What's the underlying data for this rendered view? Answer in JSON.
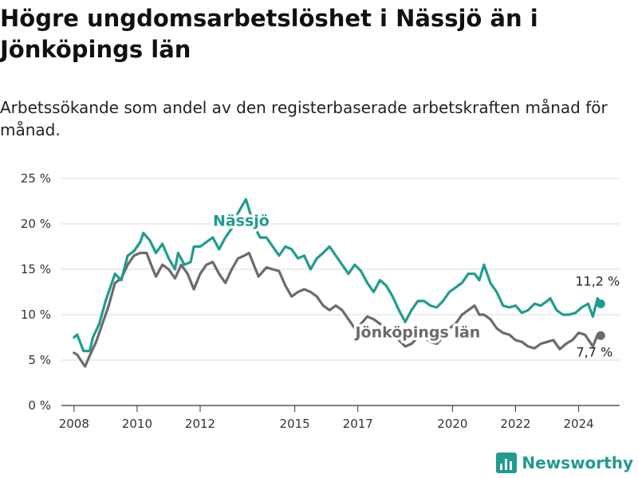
{
  "title": "Högre ungdomsarbetslöshet i Nässjö än i Jönköpings län",
  "subtitle": "Arbetssökande som andel av den registerbaserade arbetskraften månad för månad.",
  "brand": "Newsworthy",
  "colors": {
    "nassjo": "#1f9c8f",
    "lan": "#6b6b6b",
    "grid": "#d9d9d9",
    "axis": "#333333"
  },
  "chart_data": {
    "type": "line",
    "title": "Högre ungdomsarbetslöshet i Nässjö än i Jönköpings län",
    "xlabel": "",
    "ylabel": "",
    "ylim": [
      0,
      25
    ],
    "xlim": [
      2007.6,
      2025.3
    ],
    "y_ticks": [
      0,
      5,
      10,
      15,
      20,
      25
    ],
    "y_tick_labels": [
      "0 %",
      "5 %",
      "10 %",
      "15 %",
      "20 %",
      "25 %"
    ],
    "x_ticks": [
      2008,
      2010,
      2012,
      2015,
      2017,
      2020,
      2022,
      2024
    ],
    "x_tick_labels": [
      "2008",
      "2010",
      "2012",
      "2015",
      "2017",
      "2020",
      "2022",
      "2024"
    ],
    "series": [
      {
        "name": "Nässjö",
        "end_label": "11,2 %",
        "points": [
          [
            2008.0,
            7.5
          ],
          [
            2008.1,
            7.8
          ],
          [
            2008.3,
            6.0
          ],
          [
            2008.5,
            6.0
          ],
          [
            2008.6,
            7.5
          ],
          [
            2008.8,
            9.0
          ],
          [
            2009.0,
            11.5
          ],
          [
            2009.3,
            14.5
          ],
          [
            2009.5,
            13.8
          ],
          [
            2009.7,
            16.5
          ],
          [
            2009.9,
            17.0
          ],
          [
            2010.1,
            18.0
          ],
          [
            2010.2,
            19.0
          ],
          [
            2010.4,
            18.2
          ],
          [
            2010.6,
            16.8
          ],
          [
            2010.8,
            17.8
          ],
          [
            2011.0,
            16.2
          ],
          [
            2011.2,
            15.0
          ],
          [
            2011.3,
            16.8
          ],
          [
            2011.5,
            15.5
          ],
          [
            2011.7,
            15.8
          ],
          [
            2011.8,
            17.5
          ],
          [
            2012.0,
            17.5
          ],
          [
            2012.2,
            18.0
          ],
          [
            2012.4,
            18.5
          ],
          [
            2012.6,
            17.2
          ],
          [
            2012.8,
            18.5
          ],
          [
            2013.0,
            19.5
          ],
          [
            2013.2,
            21.2
          ],
          [
            2013.3,
            21.8
          ],
          [
            2013.45,
            22.7
          ],
          [
            2013.6,
            21.0
          ],
          [
            2013.75,
            19.5
          ],
          [
            2013.9,
            18.5
          ],
          [
            2014.1,
            18.5
          ],
          [
            2014.3,
            17.5
          ],
          [
            2014.5,
            16.5
          ],
          [
            2014.7,
            17.5
          ],
          [
            2014.9,
            17.2
          ],
          [
            2015.1,
            16.2
          ],
          [
            2015.3,
            16.5
          ],
          [
            2015.5,
            15.0
          ],
          [
            2015.7,
            16.2
          ],
          [
            2015.9,
            16.8
          ],
          [
            2016.1,
            17.5
          ],
          [
            2016.3,
            16.5
          ],
          [
            2016.5,
            15.5
          ],
          [
            2016.7,
            14.5
          ],
          [
            2016.9,
            15.5
          ],
          [
            2017.1,
            14.8
          ],
          [
            2017.3,
            13.5
          ],
          [
            2017.5,
            12.5
          ],
          [
            2017.7,
            13.8
          ],
          [
            2017.9,
            13.2
          ],
          [
            2018.1,
            12.0
          ],
          [
            2018.3,
            10.5
          ],
          [
            2018.5,
            9.2
          ],
          [
            2018.7,
            10.5
          ],
          [
            2018.9,
            11.5
          ],
          [
            2019.1,
            11.5
          ],
          [
            2019.3,
            11.0
          ],
          [
            2019.5,
            10.8
          ],
          [
            2019.7,
            11.5
          ],
          [
            2019.9,
            12.5
          ],
          [
            2020.1,
            13.0
          ],
          [
            2020.3,
            13.5
          ],
          [
            2020.5,
            14.5
          ],
          [
            2020.7,
            14.5
          ],
          [
            2020.85,
            13.8
          ],
          [
            2021.0,
            15.5
          ],
          [
            2021.2,
            13.5
          ],
          [
            2021.4,
            12.5
          ],
          [
            2021.6,
            11.0
          ],
          [
            2021.8,
            10.8
          ],
          [
            2022.0,
            11.0
          ],
          [
            2022.2,
            10.2
          ],
          [
            2022.4,
            10.5
          ],
          [
            2022.6,
            11.2
          ],
          [
            2022.8,
            11.0
          ],
          [
            2023.0,
            11.5
          ],
          [
            2023.1,
            11.8
          ],
          [
            2023.3,
            10.5
          ],
          [
            2023.5,
            10.0
          ],
          [
            2023.7,
            10.0
          ],
          [
            2023.9,
            10.2
          ],
          [
            2024.1,
            10.8
          ],
          [
            2024.3,
            11.2
          ],
          [
            2024.45,
            9.8
          ],
          [
            2024.6,
            11.8
          ],
          [
            2024.7,
            11.2
          ]
        ]
      },
      {
        "name": "Jönköpings län",
        "end_label": "7,7 %",
        "points": [
          [
            2008.0,
            5.8
          ],
          [
            2008.1,
            5.6
          ],
          [
            2008.25,
            4.8
          ],
          [
            2008.35,
            4.3
          ],
          [
            2008.5,
            5.5
          ],
          [
            2008.7,
            7.0
          ],
          [
            2008.9,
            9.0
          ],
          [
            2009.1,
            11.0
          ],
          [
            2009.3,
            13.5
          ],
          [
            2009.5,
            14.0
          ],
          [
            2009.7,
            15.5
          ],
          [
            2009.9,
            16.5
          ],
          [
            2010.1,
            16.8
          ],
          [
            2010.3,
            16.8
          ],
          [
            2010.5,
            15.0
          ],
          [
            2010.6,
            14.2
          ],
          [
            2010.8,
            15.5
          ],
          [
            2011.0,
            15.0
          ],
          [
            2011.2,
            14.0
          ],
          [
            2011.4,
            15.5
          ],
          [
            2011.6,
            14.5
          ],
          [
            2011.8,
            12.8
          ],
          [
            2012.0,
            14.5
          ],
          [
            2012.2,
            15.5
          ],
          [
            2012.4,
            15.8
          ],
          [
            2012.6,
            14.5
          ],
          [
            2012.8,
            13.5
          ],
          [
            2013.0,
            15.0
          ],
          [
            2013.2,
            16.2
          ],
          [
            2013.4,
            16.5
          ],
          [
            2013.55,
            16.8
          ],
          [
            2013.7,
            15.5
          ],
          [
            2013.85,
            14.2
          ],
          [
            2014.1,
            15.2
          ],
          [
            2014.3,
            15.0
          ],
          [
            2014.5,
            14.8
          ],
          [
            2014.7,
            13.2
          ],
          [
            2014.9,
            12.0
          ],
          [
            2015.1,
            12.5
          ],
          [
            2015.3,
            12.8
          ],
          [
            2015.5,
            12.5
          ],
          [
            2015.7,
            12.0
          ],
          [
            2015.9,
            11.0
          ],
          [
            2016.1,
            10.5
          ],
          [
            2016.3,
            11.0
          ],
          [
            2016.5,
            10.5
          ],
          [
            2016.7,
            9.5
          ],
          [
            2016.9,
            8.5
          ],
          [
            2017.1,
            9.0
          ],
          [
            2017.3,
            9.8
          ],
          [
            2017.5,
            9.5
          ],
          [
            2017.7,
            9.0
          ],
          [
            2017.9,
            8.5
          ],
          [
            2018.1,
            7.8
          ],
          [
            2018.3,
            7.2
          ],
          [
            2018.5,
            6.5
          ],
          [
            2018.7,
            6.8
          ],
          [
            2018.9,
            7.5
          ],
          [
            2019.1,
            7.5
          ],
          [
            2019.3,
            7.0
          ],
          [
            2019.5,
            6.8
          ],
          [
            2019.7,
            7.5
          ],
          [
            2019.9,
            8.5
          ],
          [
            2020.1,
            9.0
          ],
          [
            2020.3,
            10.0
          ],
          [
            2020.5,
            10.5
          ],
          [
            2020.7,
            11.0
          ],
          [
            2020.85,
            10.0
          ],
          [
            2021.0,
            10.0
          ],
          [
            2021.2,
            9.5
          ],
          [
            2021.4,
            8.5
          ],
          [
            2021.6,
            8.0
          ],
          [
            2021.8,
            7.8
          ],
          [
            2022.0,
            7.2
          ],
          [
            2022.2,
            7.0
          ],
          [
            2022.4,
            6.5
          ],
          [
            2022.6,
            6.3
          ],
          [
            2022.8,
            6.8
          ],
          [
            2023.0,
            7.0
          ],
          [
            2023.2,
            7.2
          ],
          [
            2023.4,
            6.2
          ],
          [
            2023.6,
            6.8
          ],
          [
            2023.8,
            7.2
          ],
          [
            2024.0,
            8.0
          ],
          [
            2024.2,
            7.8
          ],
          [
            2024.45,
            6.5
          ],
          [
            2024.6,
            7.8
          ],
          [
            2024.7,
            7.7
          ]
        ]
      }
    ]
  }
}
